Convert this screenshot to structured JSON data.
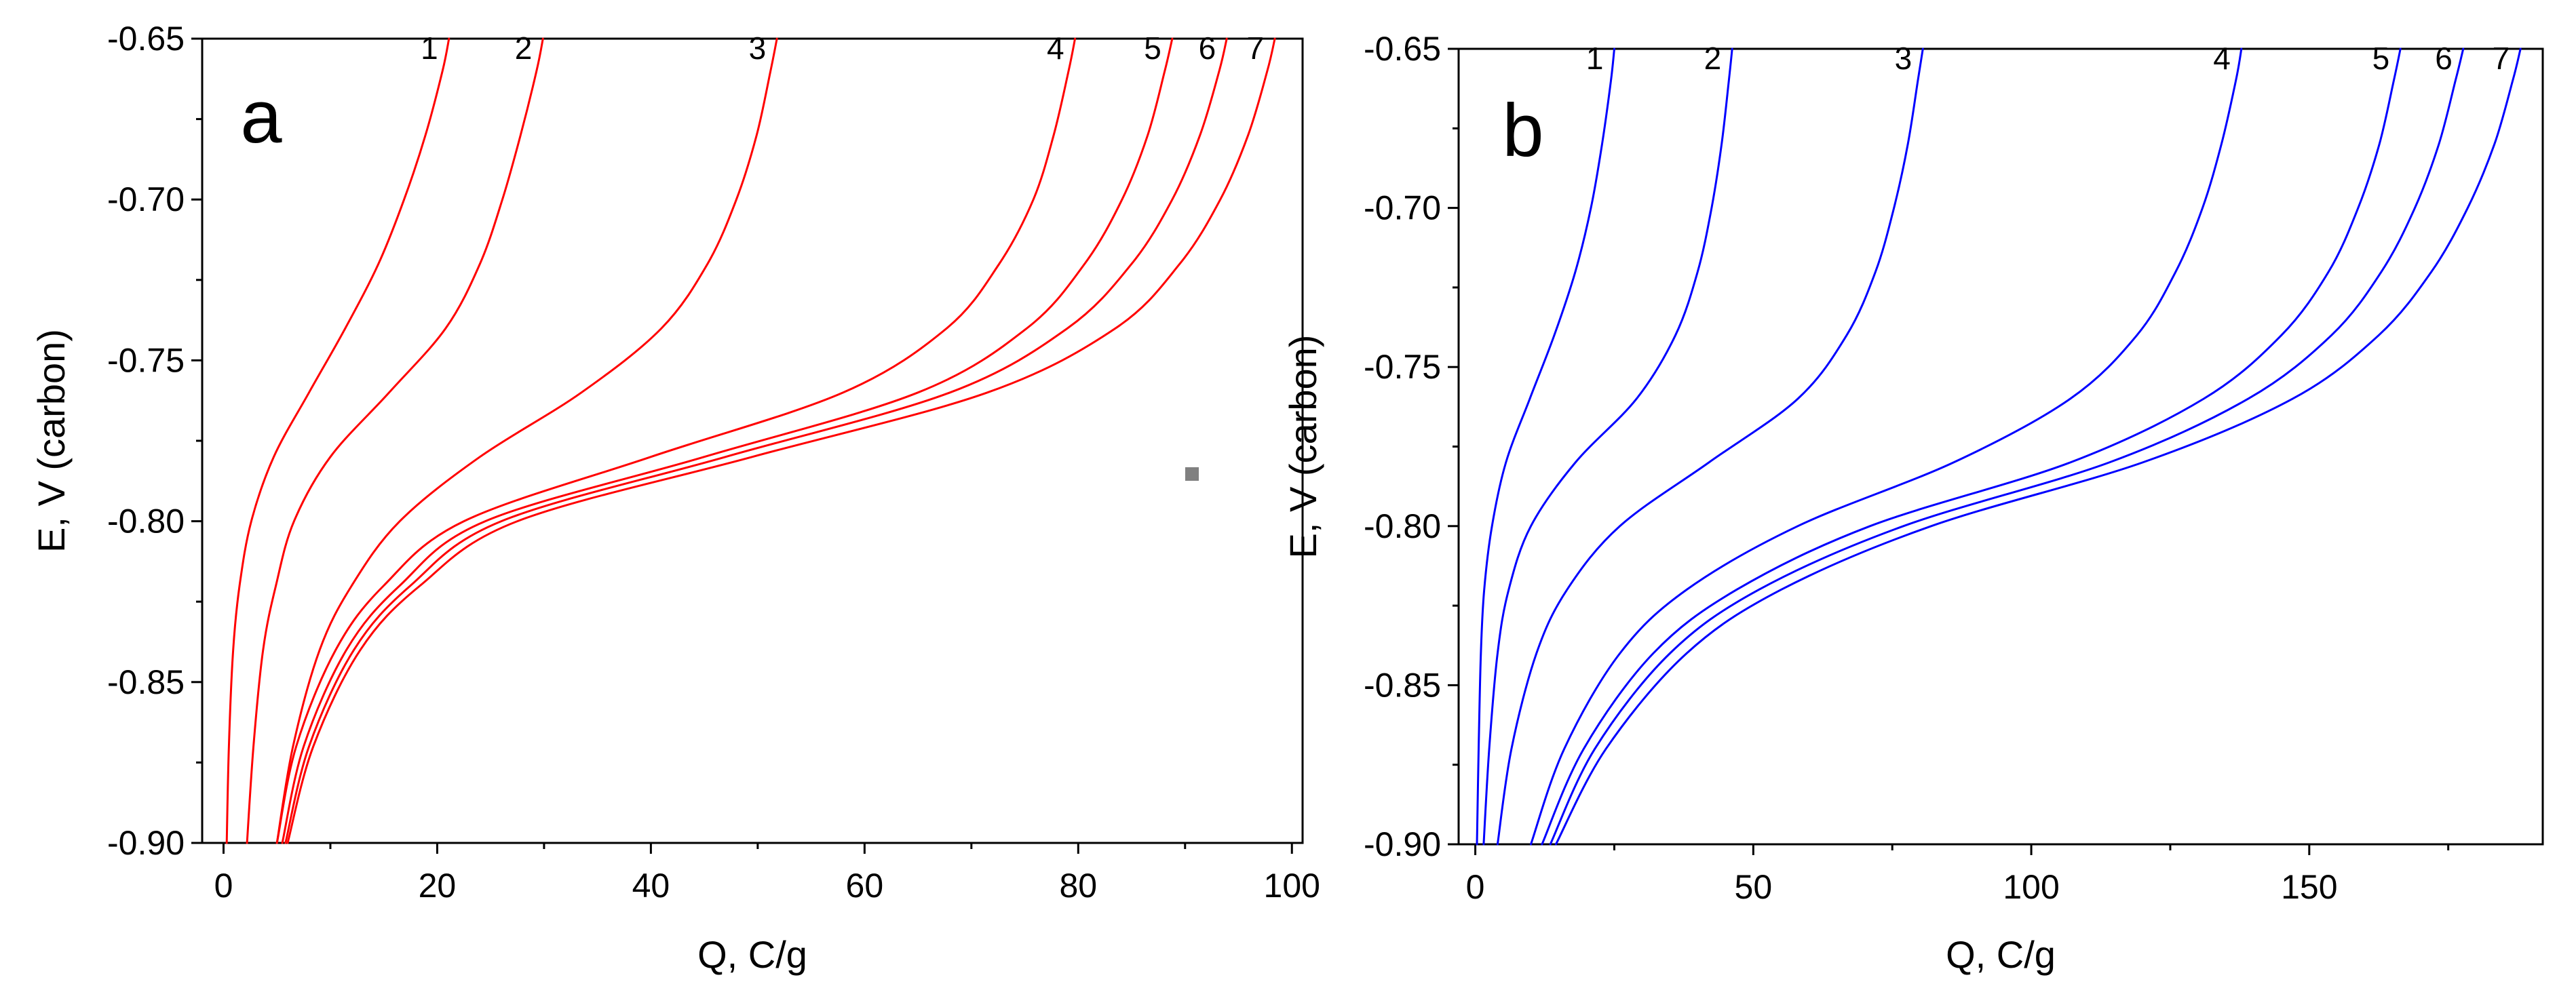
{
  "chart_data": [
    {
      "type": "line",
      "panel_label": "a",
      "xlabel": "Q, C/g",
      "ylabel": "E, V (carbon)",
      "xlim": [
        -2,
        101
      ],
      "ylim": [
        -0.9,
        -0.65
      ],
      "xticks": [
        0,
        20,
        40,
        60,
        80,
        100
      ],
      "xtick_labels": [
        "0",
        "20",
        "40",
        "60",
        "80",
        "100"
      ],
      "yticks": [
        -0.65,
        -0.7,
        -0.75,
        -0.8,
        -0.85,
        -0.9
      ],
      "ytick_labels": [
        "-0.65",
        "-0.70",
        "-0.75",
        "-0.80",
        "-0.85",
        "-0.90"
      ],
      "color": "#ff0000",
      "y": [
        -0.9,
        -0.87,
        -0.84,
        -0.82,
        -0.8,
        -0.78,
        -0.76,
        -0.74,
        -0.72,
        -0.7,
        -0.68,
        -0.66,
        -0.65
      ],
      "series": [
        {
          "name": "1",
          "x": [
            0.3,
            0.5,
            0.9,
            1.5,
            2.6,
            4.7,
            8.0,
            11.4,
            14.5,
            16.9,
            18.9,
            20.5,
            21.1
          ]
        },
        {
          "name": "2",
          "x": [
            2.2,
            2.8,
            3.7,
            4.9,
            6.6,
            10.0,
            15.5,
            20.8,
            24.0,
            26.1,
            27.8,
            29.3,
            29.9
          ]
        },
        {
          "name": "3",
          "x": [
            5.0,
            6.5,
            9.0,
            12.0,
            16.5,
            24.0,
            33.5,
            41.0,
            45.3,
            48.0,
            49.9,
            51.2,
            51.8
          ]
        },
        {
          "name": "4",
          "x": [
            5.0,
            6.8,
            10.5,
            15.0,
            22.5,
            40.0,
            58.0,
            67.7,
            72.6,
            75.8,
            77.7,
            79.1,
            79.7
          ]
        },
        {
          "name": "5",
          "x": [
            5.5,
            7.5,
            11.5,
            16.5,
            24.5,
            45.0,
            65.0,
            75.2,
            80.6,
            84.1,
            86.5,
            88.1,
            88.8
          ]
        },
        {
          "name": "6",
          "x": [
            5.8,
            8.0,
            12.2,
            17.5,
            26.0,
            47.0,
            68.0,
            79.0,
            85.0,
            88.8,
            91.4,
            93.2,
            93.9
          ]
        },
        {
          "name": "7",
          "x": [
            6.0,
            8.4,
            12.8,
            18.4,
            27.5,
            49.5,
            71.5,
            83.5,
            89.5,
            93.3,
            95.9,
            97.7,
            98.4
          ]
        }
      ]
    },
    {
      "type": "line",
      "panel_label": "b",
      "xlabel": "Q, C/g",
      "ylabel": "E, V (carbon)",
      "xlim": [
        -3,
        192
      ],
      "ylim": [
        -0.9,
        -0.65
      ],
      "xticks": [
        0,
        50,
        100,
        150
      ],
      "xtick_labels": [
        "0",
        "50",
        "100",
        "150"
      ],
      "yticks": [
        -0.65,
        -0.7,
        -0.75,
        -0.8,
        -0.85,
        -0.9
      ],
      "ytick_labels": [
        "-0.65",
        "-0.70",
        "-0.75",
        "-0.80",
        "-0.85",
        "-0.90"
      ],
      "color": "#0000ff",
      "y": [
        -0.9,
        -0.87,
        -0.84,
        -0.82,
        -0.8,
        -0.78,
        -0.76,
        -0.74,
        -0.72,
        -0.7,
        -0.68,
        -0.66,
        -0.65
      ],
      "series": [
        {
          "name": "1",
          "x": [
            0.3,
            0.6,
            1.0,
            1.6,
            3.0,
            5.5,
            9.8,
            14.2,
            18.0,
            20.8,
            22.8,
            24.4,
            25.0
          ]
        },
        {
          "name": "2",
          "x": [
            1.5,
            2.5,
            4.0,
            6.0,
            10.0,
            18.0,
            29.0,
            36.0,
            40.0,
            42.5,
            44.3,
            45.6,
            46.2
          ]
        },
        {
          "name": "3",
          "x": [
            4.0,
            6.5,
            11.0,
            16.5,
            26.0,
            42.0,
            58.0,
            66.8,
            72.0,
            75.3,
            77.8,
            79.6,
            80.5
          ]
        },
        {
          "name": "4",
          "x": [
            10.0,
            16.0,
            26.0,
            38.0,
            58.0,
            86.0,
            107.0,
            119.0,
            126.0,
            130.8,
            134.2,
            136.8,
            137.8
          ]
        },
        {
          "name": "5",
          "x": [
            12.0,
            19.5,
            32.0,
            47.0,
            71.0,
            107.0,
            131.0,
            145.0,
            153.5,
            158.8,
            162.6,
            165.2,
            166.4
          ]
        },
        {
          "name": "6",
          "x": [
            13.5,
            21.5,
            35.0,
            51.0,
            77.0,
            114.0,
            139.0,
            154.0,
            163.0,
            169.0,
            173.3,
            176.3,
            177.7
          ]
        },
        {
          "name": "7",
          "x": [
            14.5,
            23.5,
            38.0,
            55.0,
            82.0,
            120.0,
            147.0,
            162.5,
            172.0,
            178.5,
            183.3,
            186.6,
            188.0
          ]
        }
      ]
    }
  ],
  "annotations": {
    "small_marker_color": "#808080"
  }
}
